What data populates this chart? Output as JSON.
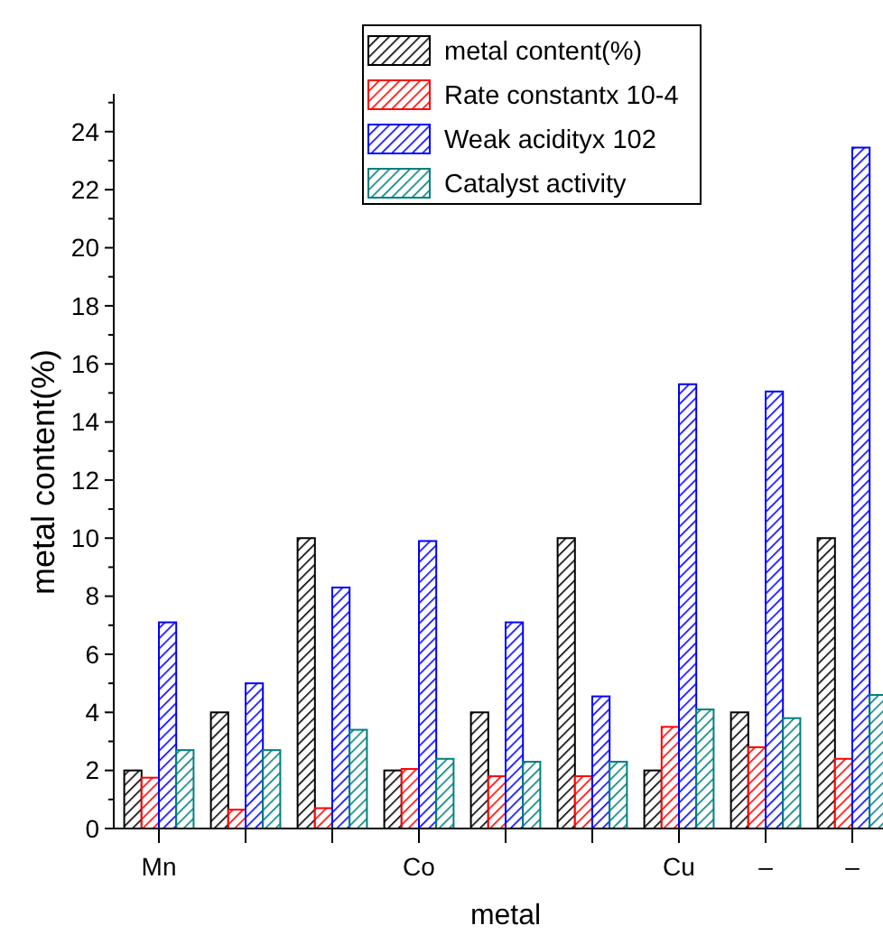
{
  "chart_data": {
    "type": "bar",
    "xlabel": "metal",
    "ylabel": "metal content(%)",
    "categories": [
      "Mn",
      null,
      null,
      "Co",
      null,
      null,
      "Cu",
      "–",
      "–"
    ],
    "series": [
      {
        "name": "metal content(%)",
        "color": "#000000",
        "values": [
          2,
          4,
          10,
          2,
          4,
          10,
          2,
          4,
          10
        ]
      },
      {
        "name": "Rate constantx 10-4",
        "color": "#ff0000",
        "values": [
          1.75,
          0.65,
          0.7,
          2.05,
          1.8,
          1.8,
          3.5,
          2.8,
          2.4
        ]
      },
      {
        "name": "Weak acidityx 102",
        "color": "#0000ff",
        "values": [
          7.1,
          5.0,
          8.3,
          9.9,
          7.1,
          4.55,
          15.3,
          15.05,
          23.45
        ]
      },
      {
        "name": "Catalyst activity",
        "color": "#008080",
        "values": [
          2.7,
          2.7,
          3.4,
          2.4,
          2.3,
          2.3,
          4.1,
          3.8,
          4.6
        ]
      }
    ],
    "ylim": [
      0,
      25.3
    ],
    "yticks": [
      0,
      {
        "value": 1,
        "label": null
      },
      2,
      {
        "value": 3,
        "label": null
      },
      4,
      {
        "value": 5,
        "label": null
      },
      6,
      {
        "value": 7,
        "label": null
      },
      8,
      {
        "value": 9,
        "label": null
      },
      10,
      {
        "value": 11,
        "label": null
      },
      12,
      {
        "value": 13,
        "label": null
      },
      14,
      {
        "value": 15,
        "label": null
      },
      16,
      {
        "value": 17,
        "label": null
      },
      18,
      {
        "value": 19,
        "label": null
      },
      20,
      {
        "value": 21,
        "label": null
      },
      22,
      {
        "value": 23,
        "label": null
      },
      24,
      {
        "value": 25,
        "label": null
      }
    ],
    "grid": false,
    "legend": "top right"
  }
}
